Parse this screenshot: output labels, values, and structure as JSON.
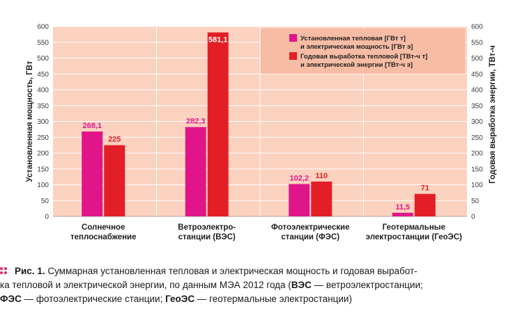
{
  "colors": {
    "plot_bg": "#fbd2bf",
    "legend_bg": "#f7bca4",
    "grid": "#ffffff",
    "series_power": "#e0158a",
    "series_energy": "#e41e26",
    "label_power": "#e0158a",
    "label_energy": "#e41e26",
    "caption_icon": "#e4206f"
  },
  "chart_data": {
    "type": "bar",
    "categories": [
      [
        "Солнечное",
        "теплоснабжение"
      ],
      [
        "Ветроэлектро-",
        "станции (ВЭС)"
      ],
      [
        "Фотоэлектрические",
        "станции (ФЭС)"
      ],
      [
        "Геотермальные",
        "электростанции (ГеоЭС)"
      ]
    ],
    "series": [
      {
        "name": [
          "Установленная тепловая [ГВт т]",
          "и электрическая мощность [ГВт э]"
        ],
        "values": [
          268.1,
          282.3,
          102.2,
          11.5
        ],
        "value_labels": [
          "268,1",
          "282,3",
          "102,2",
          "11,5"
        ],
        "color": "#e0158a"
      },
      {
        "name": [
          "Годовая выработка тепловой  [ТВт-ч т]",
          "и электрической энергии [ТВт-ч э]"
        ],
        "values": [
          225,
          581.1,
          110,
          71
        ],
        "value_labels": [
          "225",
          "581,1",
          "110",
          "71"
        ],
        "color": "#e41e26"
      }
    ],
    "ylabel_left": "Установленная мощность, ГВт",
    "ylabel_right": "Годовая выработка энергии, ТВт-ч",
    "ylim": [
      0,
      600
    ],
    "yticks": [
      0,
      50,
      100,
      150,
      200,
      250,
      300,
      350,
      400,
      450,
      500,
      550,
      600
    ],
    "grid": true,
    "legend_position": "top-right"
  },
  "caption": {
    "line1_prefix": "Рис. 1.",
    "line1_text": " Суммарная установленная тепловая и электрическая мощность и годовая выработ-",
    "line2_a": "ка тепловой и электрической энергии, по данным МЭА 2012 года (",
    "line2_bold": "ВЭС",
    "line2_b": " — ветроэлектростанции;",
    "line3_bold1": "ФЭС",
    "line3_a": " — фотоэлектрические станции; ",
    "line3_bold2": "ГеоЭС",
    "line3_b": " — геотермальные электростанции)"
  }
}
